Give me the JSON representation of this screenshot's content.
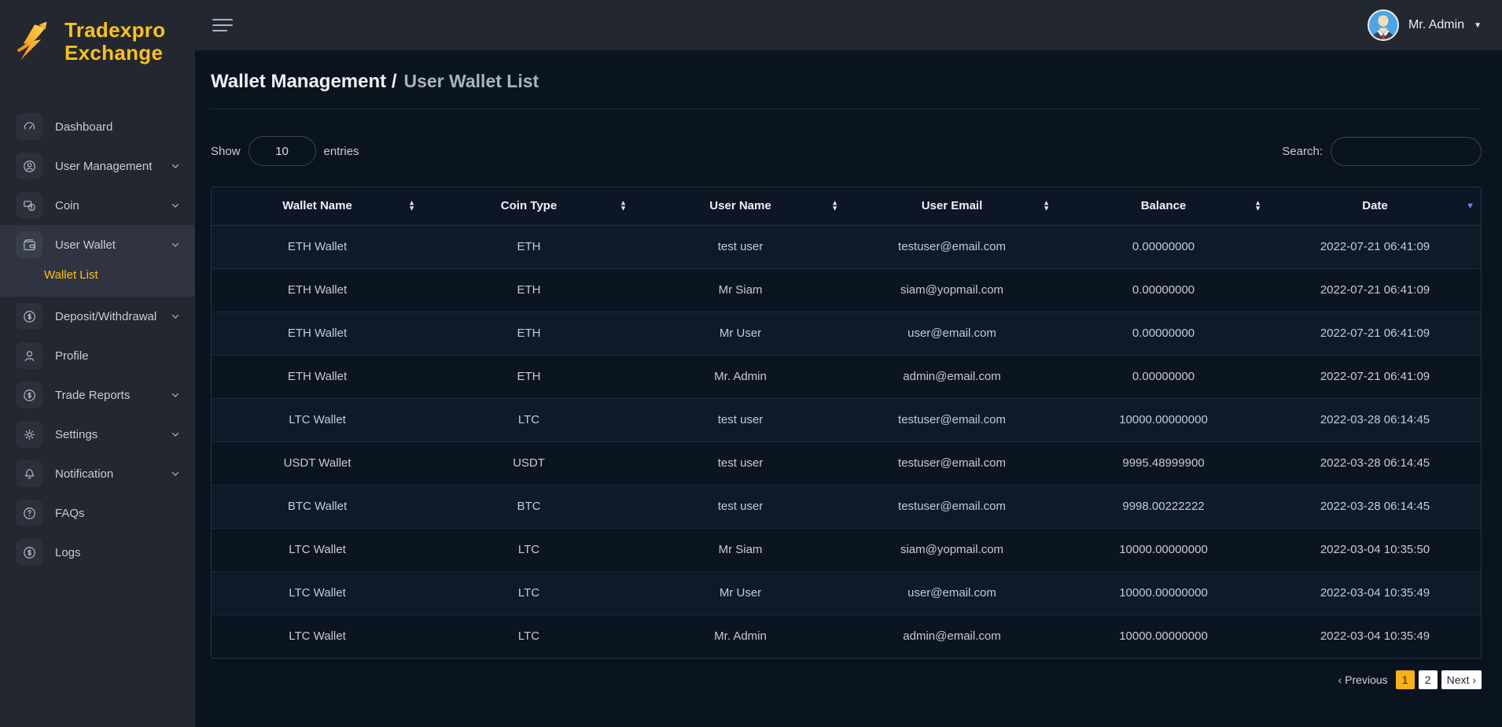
{
  "colors": {
    "accent_yellow": "#ffc107",
    "brand_yellow": "#fdc118",
    "pagination_active": "#f7b217",
    "sort_active_arrow": "#7b82f5",
    "avatar_bg": "#4aa4e8",
    "sidebar_bg": "#23272f",
    "content_bg": "#0a141f"
  },
  "brand": {
    "line1": "Tradexpro",
    "line2": "Exchange",
    "icon": "lightning-arrow"
  },
  "topbar": {
    "user_name": "Mr. Admin"
  },
  "sidebar": {
    "items": [
      {
        "id": "dashboard",
        "label": "Dashboard",
        "icon": "dashboard",
        "chevron": false
      },
      {
        "id": "user-management",
        "label": "User Management",
        "icon": "user-management",
        "chevron": true
      },
      {
        "id": "coin",
        "label": "Coin",
        "icon": "coin",
        "chevron": true
      },
      {
        "id": "user-wallet",
        "label": "User Wallet",
        "icon": "wallet",
        "chevron": true,
        "active": true,
        "submenu": [
          {
            "id": "wallet-list",
            "label": "Wallet List",
            "active": true
          }
        ]
      },
      {
        "id": "deposit-withdrawal",
        "label": "Deposit/Withdrawal",
        "icon": "dollar-circle",
        "chevron": true
      },
      {
        "id": "profile",
        "label": "Profile",
        "icon": "profile",
        "chevron": false
      },
      {
        "id": "trade-reports",
        "label": "Trade Reports",
        "icon": "dollar-circle",
        "chevron": true
      },
      {
        "id": "settings",
        "label": "Settings",
        "icon": "gear",
        "chevron": true
      },
      {
        "id": "notification",
        "label": "Notification",
        "icon": "bell",
        "chevron": true
      },
      {
        "id": "faqs",
        "label": "FAQs",
        "icon": "question-circle",
        "chevron": false
      },
      {
        "id": "logs",
        "label": "Logs",
        "icon": "dollar-circle",
        "chevron": false
      }
    ]
  },
  "breadcrumb": {
    "section": "Wallet Management /",
    "page": "User Wallet List"
  },
  "controls": {
    "show_label": "Show",
    "page_size": "10",
    "entries_label": "entries",
    "search_label": "Search:",
    "search_value": ""
  },
  "table": {
    "columns": [
      {
        "label": "Wallet Name",
        "sort": "both"
      },
      {
        "label": "Coin Type",
        "sort": "both"
      },
      {
        "label": "User Name",
        "sort": "both"
      },
      {
        "label": "User Email",
        "sort": "both"
      },
      {
        "label": "Balance",
        "sort": "both"
      },
      {
        "label": "Date",
        "sort": "desc"
      }
    ],
    "rows": [
      [
        "ETH Wallet",
        "ETH",
        "test user",
        "testuser@email.com",
        "0.00000000",
        "2022-07-21 06:41:09"
      ],
      [
        "ETH Wallet",
        "ETH",
        "Mr Siam",
        "siam@yopmail.com",
        "0.00000000",
        "2022-07-21 06:41:09"
      ],
      [
        "ETH Wallet",
        "ETH",
        "Mr User",
        "user@email.com",
        "0.00000000",
        "2022-07-21 06:41:09"
      ],
      [
        "ETH Wallet",
        "ETH",
        "Mr. Admin",
        "admin@email.com",
        "0.00000000",
        "2022-07-21 06:41:09"
      ],
      [
        "LTC Wallet",
        "LTC",
        "test user",
        "testuser@email.com",
        "10000.00000000",
        "2022-03-28 06:14:45"
      ],
      [
        "USDT Wallet",
        "USDT",
        "test user",
        "testuser@email.com",
        "9995.48999900",
        "2022-03-28 06:14:45"
      ],
      [
        "BTC Wallet",
        "BTC",
        "test user",
        "testuser@email.com",
        "9998.00222222",
        "2022-03-28 06:14:45"
      ],
      [
        "LTC Wallet",
        "LTC",
        "Mr Siam",
        "siam@yopmail.com",
        "10000.00000000",
        "2022-03-04 10:35:50"
      ],
      [
        "LTC Wallet",
        "LTC",
        "Mr User",
        "user@email.com",
        "10000.00000000",
        "2022-03-04 10:35:49"
      ],
      [
        "LTC Wallet",
        "LTC",
        "Mr. Admin",
        "admin@email.com",
        "10000.00000000",
        "2022-03-04 10:35:49"
      ]
    ]
  },
  "pagination": {
    "previous_label": "‹ Previous",
    "pages": [
      "1",
      "2"
    ],
    "active_page": "1",
    "next_label": "Next ›"
  }
}
